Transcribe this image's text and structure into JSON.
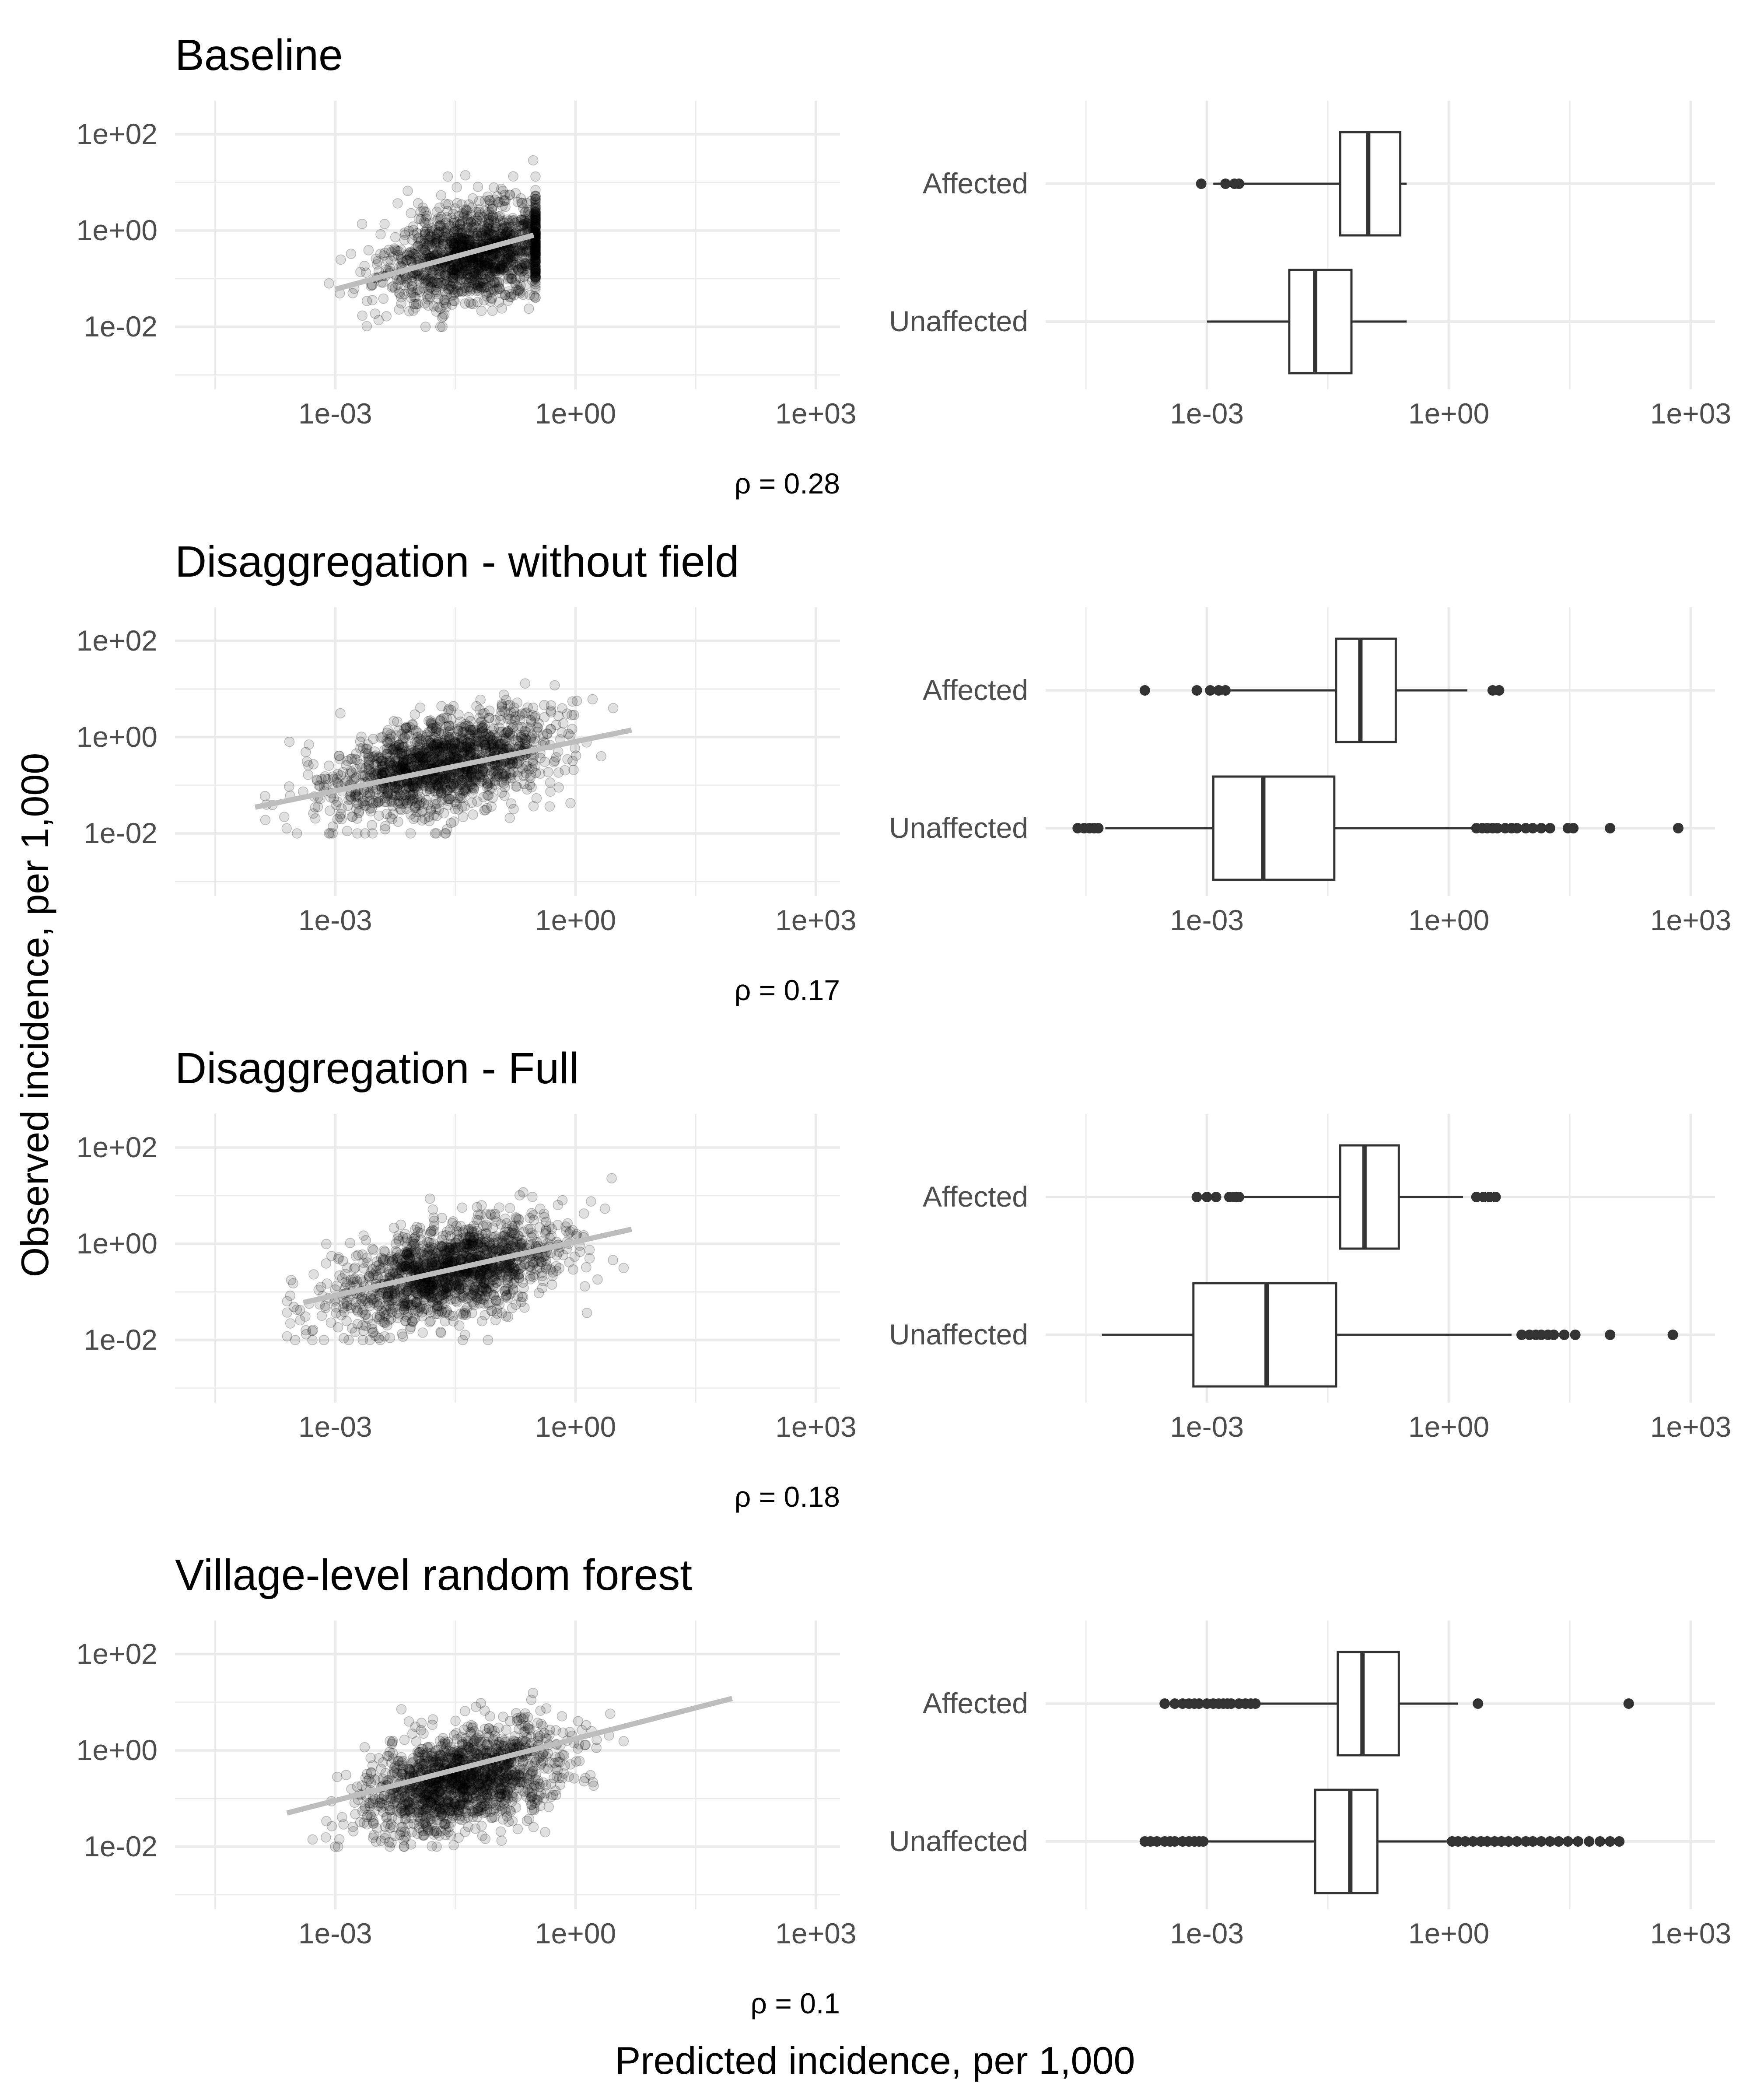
{
  "xlabel": "Predicted incidence, per 1,000",
  "ylabel": "Observed incidence, per 1,000",
  "chart_data": [
    {
      "type": "scatter",
      "title": "Baseline",
      "x_scale": "log10",
      "y_scale": "log10",
      "xlim": [
        1e-05,
        2000
      ],
      "ylim": [
        0.0005,
        500
      ],
      "x_ticks": [
        "1e-03",
        "1e+00",
        "1e+03"
      ],
      "y_ticks": [
        "1e-02",
        "1e+00",
        "1e+02"
      ],
      "cloud": {
        "x_log10_mean": -1.2,
        "x_log10_sd": 0.6,
        "x_log10_range": [
          -3.3,
          -0.5
        ],
        "y_log10_mean": -0.45,
        "y_log10_sd": 0.5,
        "y_log10_range": [
          -3,
          2.5
        ],
        "n": 1500
      },
      "fit_line": {
        "x": [
          0.001,
          0.3
        ],
        "y": [
          0.06,
          0.8
        ]
      },
      "annotation": "ρ = 0.28"
    },
    {
      "type": "box",
      "x_scale": "log10",
      "xlim": [
        1e-05,
        2000
      ],
      "x_ticks": [
        "1e-03",
        "1e+00",
        "1e+03"
      ],
      "groups": [
        {
          "name": "Affected",
          "whisker_low": 0.0012,
          "q1": 0.045,
          "median": 0.1,
          "q3": 0.25,
          "whisker_high": 0.3,
          "outliers": [
            0.00085,
            0.0017,
            0.0022,
            0.0025
          ]
        },
        {
          "name": "Unaffected",
          "whisker_low": 0.001,
          "q1": 0.0105,
          "median": 0.022,
          "q3": 0.062,
          "whisker_high": 0.3,
          "outliers": []
        }
      ]
    },
    {
      "type": "scatter",
      "title": "Disaggregation - without field",
      "x_scale": "log10",
      "y_scale": "log10",
      "xlim": [
        1e-05,
        2000
      ],
      "ylim": [
        0.0005,
        500
      ],
      "x_ticks": [
        "1e-03",
        "1e+00",
        "1e+03"
      ],
      "y_ticks": [
        "1e-02",
        "1e+00",
        "1e+02"
      ],
      "cloud": {
        "x_log10_mean": -1.7,
        "x_log10_sd": 0.7,
        "x_log10_range": [
          -4,
          0.5
        ],
        "y_log10_mean": -0.6,
        "y_log10_sd": 0.5,
        "y_log10_range": [
          -3,
          2.5
        ],
        "n": 1500
      },
      "fit_line": {
        "x": [
          0.0001,
          5
        ],
        "y": [
          0.035,
          1.4
        ]
      },
      "annotation": "ρ = 0.17"
    },
    {
      "type": "box",
      "x_scale": "log10",
      "xlim": [
        1e-05,
        2000
      ],
      "x_ticks": [
        "1e-03",
        "1e+00",
        "1e+03"
      ],
      "groups": [
        {
          "name": "Affected",
          "whisker_low": 0.002,
          "q1": 0.04,
          "median": 0.08,
          "q3": 0.22,
          "whisker_high": 1.7,
          "outliers": [
            0.00017,
            0.00075,
            0.0011,
            0.0014,
            0.0017,
            3.5,
            4.2
          ]
        },
        {
          "name": "Unaffected",
          "whisker_low": 5.5e-05,
          "q1": 0.0012,
          "median": 0.005,
          "q3": 0.038,
          "whisker_high": 2,
          "outliers": [
            2.5e-05,
            3e-05,
            3.5e-05,
            4e-05,
            4.5e-05,
            2.2,
            2.6,
            3,
            3.5,
            4,
            5,
            6,
            7,
            9,
            11,
            14,
            18,
            30,
            35,
            100,
            700
          ]
        }
      ]
    },
    {
      "type": "scatter",
      "title": "Disaggregation - Full",
      "x_scale": "log10",
      "y_scale": "log10",
      "xlim": [
        1e-05,
        2000
      ],
      "ylim": [
        0.0005,
        500
      ],
      "x_ticks": [
        "1e-03",
        "1e+00",
        "1e+03"
      ],
      "y_ticks": [
        "1e-02",
        "1e+00",
        "1e+02"
      ],
      "cloud": {
        "x_log10_mean": -1.6,
        "x_log10_sd": 0.7,
        "x_log10_range": [
          -3.6,
          0.6
        ],
        "y_log10_mean": -0.6,
        "y_log10_sd": 0.5,
        "y_log10_range": [
          -3,
          2.5
        ],
        "n": 1500
      },
      "fit_line": {
        "x": [
          0.0004,
          5
        ],
        "y": [
          0.06,
          2
        ]
      },
      "annotation": "ρ = 0.18"
    },
    {
      "type": "box",
      "x_scale": "log10",
      "xlim": [
        1e-05,
        2000
      ],
      "x_ticks": [
        "1e-03",
        "1e+00",
        "1e+03"
      ],
      "groups": [
        {
          "name": "Affected",
          "whisker_low": 0.0025,
          "q1": 0.045,
          "median": 0.09,
          "q3": 0.24,
          "whisker_high": 1.5,
          "outliers": [
            0.00075,
            0.001,
            0.0013,
            0.0019,
            0.0022,
            0.0025,
            2.2,
            2.7,
            3.2,
            3.8
          ]
        },
        {
          "name": "Unaffected",
          "whisker_low": 5e-05,
          "q1": 0.00068,
          "median": 0.0055,
          "q3": 0.04,
          "whisker_high": 6,
          "outliers": [
            8,
            10,
            12,
            14,
            17,
            20,
            27,
            37,
            100,
            600
          ]
        }
      ]
    },
    {
      "type": "box",
      "x_scale": "log10",
      "xlim": [
        1e-05,
        2000
      ],
      "x_ticks": [
        "1e-03",
        "1e+00",
        "1e+03"
      ],
      "groups": [
        {
          "name": "Affected",
          "whisker_low": 0.0045,
          "q1": 0.042,
          "median": 0.085,
          "q3": 0.24,
          "whisker_high": 1.3,
          "outliers": [
            0.0003,
            0.0004,
            0.0005,
            0.0006,
            0.0007,
            0.0008,
            0.001,
            0.0012,
            0.0014,
            0.0016,
            0.0018,
            0.002,
            0.0025,
            0.003,
            0.0035,
            0.004,
            2.3,
            170
          ]
        },
        {
          "name": "Unaffected",
          "whisker_low": 0.001,
          "q1": 0.022,
          "median": 0.06,
          "q3": 0.13,
          "whisker_high": 1,
          "outliers": [
            0.00017,
            0.0002,
            0.00024,
            0.0003,
            0.00035,
            0.0004,
            0.0005,
            0.0006,
            0.0007,
            0.0008,
            0.0009,
            1.1,
            1.3,
            1.6,
            2,
            2.5,
            3,
            3.7,
            4.5,
            5.5,
            7,
            9,
            11,
            14,
            18,
            23,
            30,
            40,
            55,
            75,
            100,
            130
          ]
        }
      ]
    },
    {
      "type": "scatter",
      "title": "Village-level random forest",
      "x_scale": "log10",
      "y_scale": "log10",
      "xlim": [
        1e-05,
        2000
      ],
      "ylim": [
        0.0005,
        500
      ],
      "x_ticks": [
        "1e-03",
        "1e+00",
        "1e+03"
      ],
      "y_ticks": [
        "1e-02",
        "1e+00",
        "1e+02"
      ],
      "cloud": {
        "x_log10_mean": -1.4,
        "x_log10_sd": 0.6,
        "x_log10_range": [
          -3.4,
          0.6
        ],
        "y_log10_mean": -0.6,
        "y_log10_sd": 0.5,
        "y_log10_range": [
          -3,
          2.5
        ],
        "n": 1500
      },
      "fit_line": {
        "x": [
          0.00025,
          90
        ],
        "y": [
          0.05,
          12
        ]
      },
      "annotation": "ρ = 0.1"
    }
  ]
}
